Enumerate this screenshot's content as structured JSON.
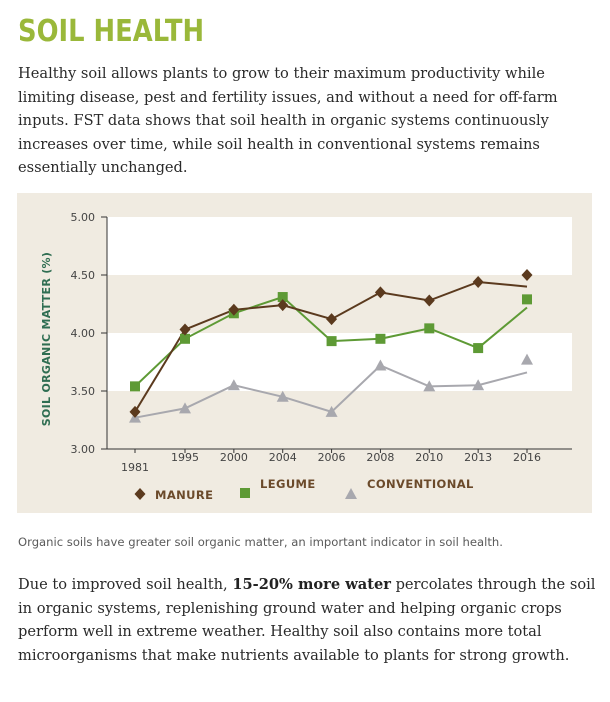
{
  "page": {
    "title": "SOIL HEALTH",
    "intro": "Healthy soil allows plants to grow to their maximum productivity while limiting disease, pest and fertility issues, and without a need for off-farm inputs. FST data shows that soil health in organic systems continuously increases over time, while soil health in conventional systems remains essentially unchanged.",
    "caption": "Organic soils have greater soil organic matter, an important indicator in soil health.",
    "outro_before": "Due to improved soil health, ",
    "outro_bold": "15-20% more water",
    "outro_after": " percolates through the soil in organic systems, replenishing ground water and helping organic crops perform well in extreme weather. Healthy soil also contains more total microorganisms that make nutrients available to plants for strong growth."
  },
  "colors": {
    "manure": "#5b3a1e",
    "legume": "#5e9a35",
    "conventional": "#a8a8ae",
    "panel": "#f0ebe1",
    "band": "#ffffff",
    "title": "#9ab83a"
  },
  "chart_data": {
    "type": "line",
    "ylabel": "SOIL ORGANIC MATTER (%)",
    "xlabel": "",
    "ylim": [
      3.0,
      5.0
    ],
    "yticks": [
      "3.00",
      "3.50",
      "4.00",
      "4.50",
      "5.00"
    ],
    "categories": [
      "1981",
      "1995",
      "2000",
      "2004",
      "2006",
      "2008",
      "2010",
      "2013",
      "2016"
    ],
    "legend_position": "bottom",
    "series": [
      {
        "name": "MANURE",
        "marker": "diamond",
        "values": [
          3.32,
          4.03,
          4.2,
          4.24,
          4.12,
          4.35,
          4.28,
          4.44,
          4.5
        ],
        "line_values": [
          3.32,
          4.03,
          4.2,
          4.24,
          4.12,
          4.35,
          4.28,
          4.44,
          4.4
        ]
      },
      {
        "name": "LEGUME",
        "marker": "square",
        "values": [
          3.54,
          3.95,
          4.17,
          4.31,
          3.93,
          3.95,
          4.04,
          3.87,
          4.29
        ],
        "line_values": [
          3.54,
          3.95,
          4.17,
          4.31,
          3.93,
          3.95,
          4.04,
          3.87,
          4.22
        ]
      },
      {
        "name": "CONVENTIONAL",
        "marker": "triangle",
        "values": [
          3.27,
          3.35,
          3.55,
          3.45,
          3.32,
          3.72,
          3.54,
          3.55,
          3.77
        ],
        "line_values": [
          3.27,
          3.35,
          3.55,
          3.45,
          3.32,
          3.72,
          3.54,
          3.55,
          3.66
        ]
      }
    ]
  }
}
